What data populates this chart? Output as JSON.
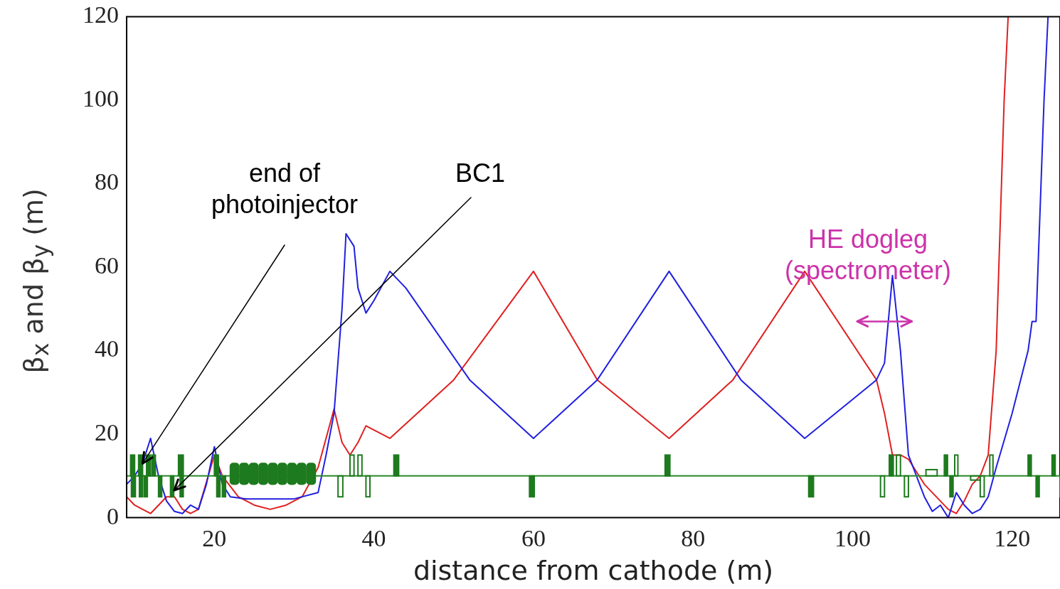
{
  "chart_data": {
    "type": "line",
    "xlabel": "distance from cathode (m)",
    "ylabel": "β$_{x}$ and β$_{y}$ (m)",
    "xlim": [
      9,
      126
    ],
    "xticks": [
      20,
      40,
      60,
      80,
      100,
      120
    ],
    "ylim": [
      0,
      120
    ],
    "yticks": [
      0,
      20,
      40,
      60,
      80,
      100,
      120
    ],
    "grid": false,
    "legend": false,
    "marker": "none",
    "line_style": "solid",
    "series": [
      {
        "color": "#2020e0",
        "x": [
          9,
          10,
          11,
          12,
          13,
          14,
          15,
          16,
          17,
          18,
          19,
          20,
          21,
          22,
          24,
          27,
          30,
          33,
          34,
          35,
          36,
          36.5,
          37.5,
          38,
          39,
          40,
          42,
          44,
          52,
          60,
          68,
          77,
          86,
          94,
          103,
          104,
          105,
          106,
          107,
          109,
          110,
          111,
          112,
          113,
          114,
          115,
          116,
          117,
          118,
          120,
          122,
          122.5,
          123,
          124,
          124.5
        ],
        "values": [
          8,
          10,
          13,
          19,
          10,
          4,
          1.5,
          1,
          3,
          2,
          8,
          17,
          8,
          5,
          4.5,
          4.5,
          4.5,
          6,
          15,
          25,
          50,
          68,
          65,
          55,
          49,
          52,
          59,
          55,
          33,
          19,
          33,
          59,
          33,
          19,
          33,
          37,
          58,
          40,
          15,
          5,
          1.5,
          3,
          0,
          6,
          3,
          1,
          2,
          5,
          12,
          25,
          40,
          47,
          47,
          100,
          120
        ]
      },
      {
        "color": "#e02020",
        "x": [
          9,
          10,
          11,
          12,
          13,
          14,
          15,
          16,
          17,
          18,
          20,
          21,
          23,
          25,
          27,
          29,
          31,
          33,
          35,
          36,
          37,
          38,
          39,
          42,
          50,
          60,
          68,
          77,
          85,
          94,
          103,
          104,
          105,
          106,
          107,
          109,
          110,
          112,
          113,
          114,
          115,
          116,
          117,
          118,
          119,
          119.5
        ],
        "values": [
          5,
          3,
          2,
          1,
          3,
          5,
          5,
          2,
          1,
          2,
          15,
          10,
          5,
          3,
          2,
          3,
          5,
          12,
          26,
          18,
          15,
          18,
          22,
          19,
          33,
          59,
          33,
          19,
          33,
          59,
          33,
          25,
          15,
          15,
          14,
          8,
          6,
          2,
          1,
          4,
          8,
          10,
          15,
          40,
          100,
          120
        ]
      }
    ],
    "ref_lines": [
      {
        "axis": "y",
        "value": 10,
        "color": "#2a8a2a"
      }
    ],
    "annotations": [
      {
        "text": "end of photoinjector",
        "x": 11,
        "y": 13
      },
      "BC1",
      {
        "text": "HE dogleg (spectrometer)",
        "x": 104,
        "y": 47
      }
    ]
  }
}
